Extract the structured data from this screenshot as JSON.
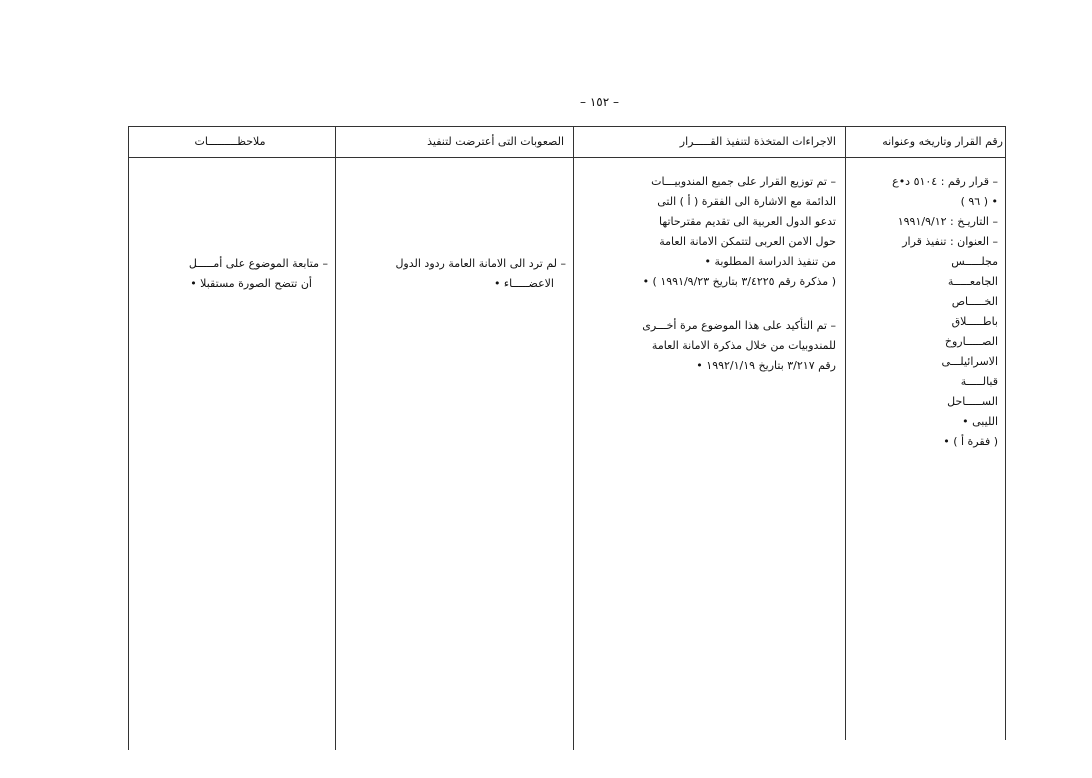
{
  "page_number": "– ١٥٢ –",
  "table": {
    "headers": {
      "decision": "رقم القرار وتاريخه وعنوانه",
      "actions": "الاجراءات المتخذة لتنفيذ القـــــرار",
      "difficulties": "الصعوبات التى أعترضت لتنفيذ",
      "notes": "ملاحظـــــــــات"
    },
    "row": {
      "decision_lines": [
        "– قرار رقم : ٥١٠٤ د•ع",
        "• ( ٩٦ )",
        "– التاريـخ : ١٩٩١/٩/١٢",
        "– العنوان : تنفيذ  قرار",
        "مجلـــــس",
        "الجامعـــــة",
        "الخـــــاص",
        "باطـــــلاق",
        "الصـــــاروخ",
        "الاسرائيلـــى",
        "قبالـــــة",
        "الســـــاحل",
        "الليبى •",
        "( فقرة أ ) •"
      ],
      "actions_block1": [
        "–  تم توزيع القرار على جميع المندوبيـــات",
        "الدائمة مع الاشارة الى الفقرة ( أ ) التى",
        "تدعو الدول العربية الى تقديم مقترحاتها",
        "حول الامن العربى لتتمكن الامانة العامة",
        "من تنفيذ الدراسة المطلوبة •",
        "( مذكرة رقم ٣/٤٢٢٥ بتاريخ ١٩٩١/٩/٢٣ ) •"
      ],
      "actions_block2": [
        "–  تم التأكيد على هذا الموضوع مرة أخـــرى",
        "للمندوبيات من خلال مذكرة الامانة العامة",
        "رقم ٣/٢١٧  بتاريخ ١٩٩٢/١/١٩ •"
      ],
      "difficulties_lines": [
        "– لم ترد الى الامانة العامة  ردود الدول",
        "الاعضـــــاء •"
      ],
      "notes_lines": [
        "–   متابعة الموضوع على أمـــــل",
        "أن تتضح الصورة مستقبلا •"
      ]
    }
  }
}
